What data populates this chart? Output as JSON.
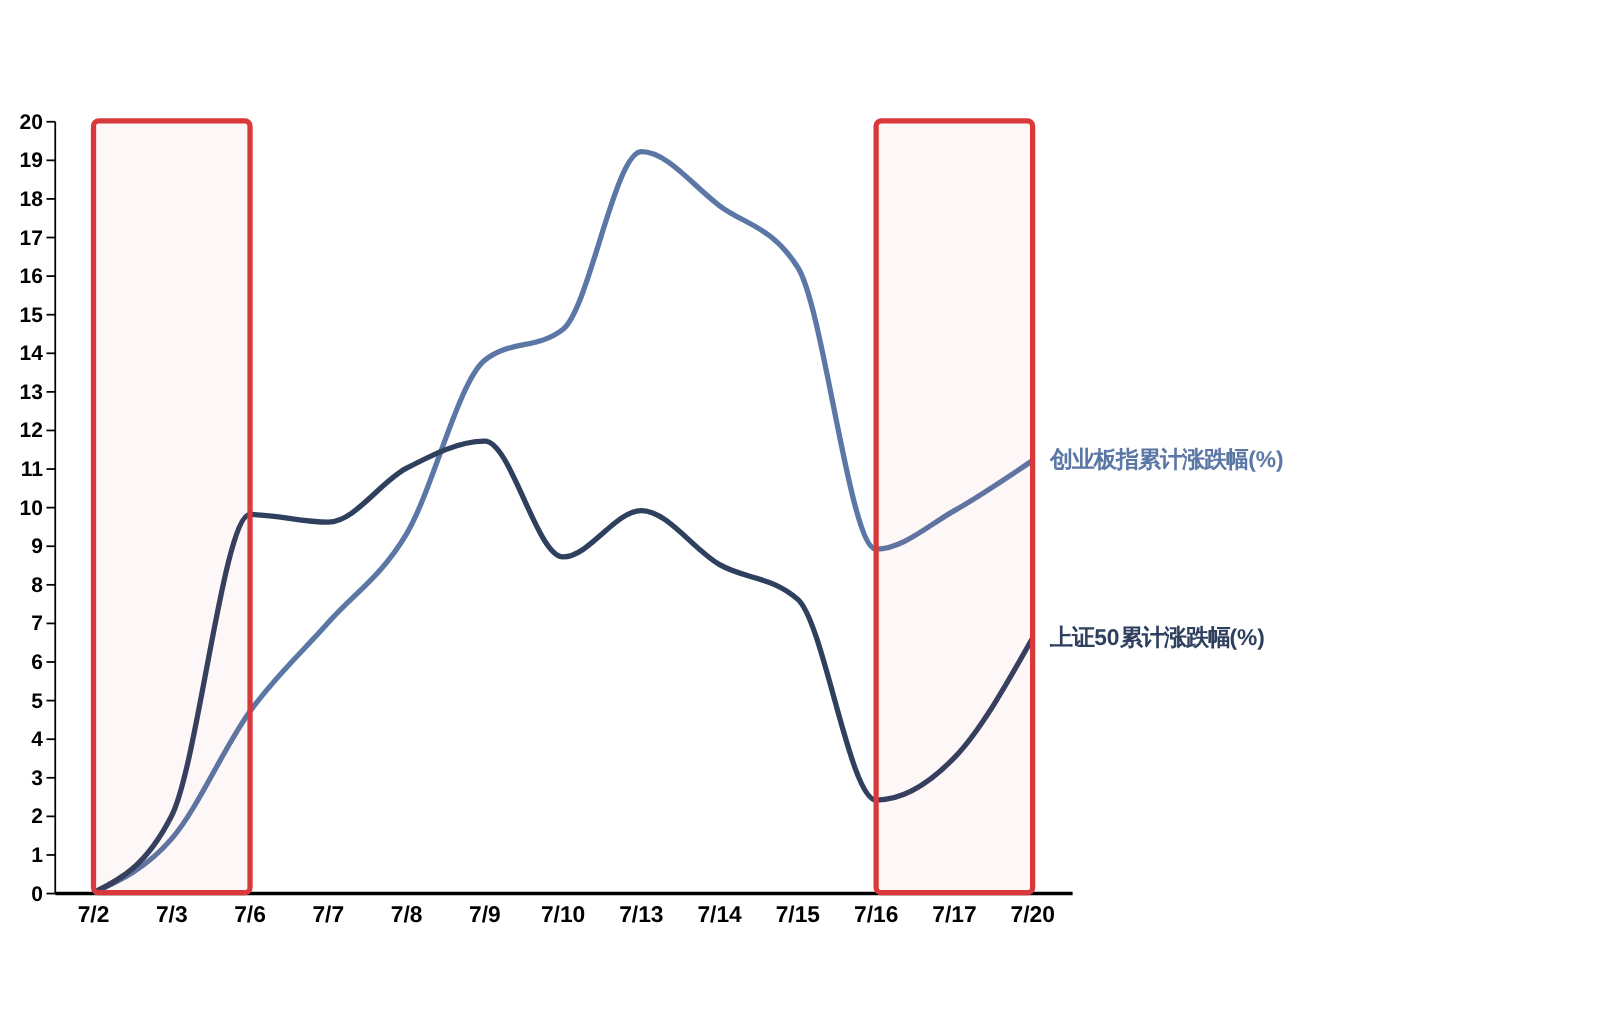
{
  "chart_data": {
    "type": "line",
    "categories": [
      "7/2",
      "7/3",
      "7/6",
      "7/7",
      "7/8",
      "7/9",
      "7/10",
      "7/13",
      "7/14",
      "7/15",
      "7/16",
      "7/17",
      "7/20"
    ],
    "series": [
      {
        "name": "创业板指累计涨跌幅(%)",
        "color": "#5b77a6",
        "values": [
          0,
          1.4,
          4.7,
          7.0,
          9.3,
          13.8,
          14.6,
          19.2,
          17.8,
          16.2,
          8.9,
          9.9,
          11.2
        ]
      },
      {
        "name": "上证50累计涨跌幅(%)",
        "color": "#2f405f",
        "values": [
          0,
          2.0,
          9.8,
          9.6,
          11.0,
          11.7,
          8.7,
          9.9,
          8.5,
          7.6,
          2.4,
          3.5,
          6.6
        ]
      }
    ],
    "ylim": [
      0,
      20
    ],
    "yticks": [
      0,
      1,
      2,
      3,
      4,
      5,
      6,
      7,
      8,
      9,
      10,
      11,
      12,
      13,
      14,
      15,
      16,
      17,
      18,
      19,
      20
    ],
    "grid": false,
    "legend": false,
    "marker": "none",
    "line_style": "solid",
    "bands": [
      {
        "axis": "x",
        "from": "7/2",
        "to": "7/6",
        "color": "#d9393a"
      },
      {
        "axis": "x",
        "from": "7/16",
        "to": "7/20",
        "color": "#d9393a"
      }
    ]
  }
}
